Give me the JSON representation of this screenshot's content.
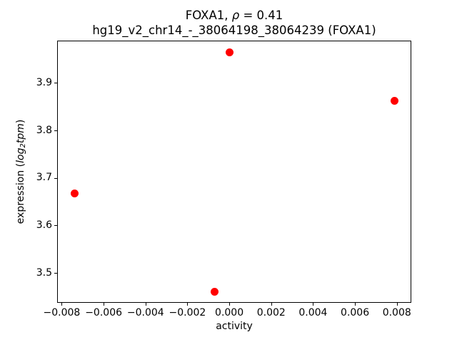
{
  "chart_data": {
    "type": "scatter",
    "title": "FOXA1, ρ = 0.41",
    "subtitle": "hg19_v2_chr14_-_38064198_38064239 (FOXA1)",
    "title_parts": {
      "prefix": "FOXA1, ",
      "rho": "ρ",
      "suffix": " = 0.41"
    },
    "xlabel": "activity",
    "ylabel": "expression (log2tpm)",
    "ylabel_parts": {
      "prefix": "expression (",
      "log": "log",
      "sub": "2",
      "tpm": "tpm",
      "suffix": ")"
    },
    "xlim": [
      -0.00822,
      0.00869
    ],
    "ylim": [
      3.437,
      3.989
    ],
    "x_ticks": [
      -0.008,
      -0.006,
      -0.004,
      -0.002,
      0.0,
      0.002,
      0.004,
      0.006,
      0.008
    ],
    "x_tick_labels": [
      "−0.008",
      "−0.006",
      "−0.004",
      "−0.002",
      "0.000",
      "0.002",
      "0.004",
      "0.006",
      "0.008"
    ],
    "y_ticks": [
      3.5,
      3.6,
      3.7,
      3.8,
      3.9
    ],
    "y_tick_labels": [
      "3.5",
      "3.6",
      "3.7",
      "3.8",
      "3.9"
    ],
    "grid": false,
    "legend": null,
    "marker_color": "#ff0000",
    "axis_color": "#000000",
    "background_color": "#ffffff",
    "points": [
      {
        "x": -0.0074,
        "y": 3.668
      },
      {
        "x": -0.0007,
        "y": 3.461
      },
      {
        "x": 0.0,
        "y": 3.964
      },
      {
        "x": 0.0079,
        "y": 3.863
      }
    ]
  }
}
